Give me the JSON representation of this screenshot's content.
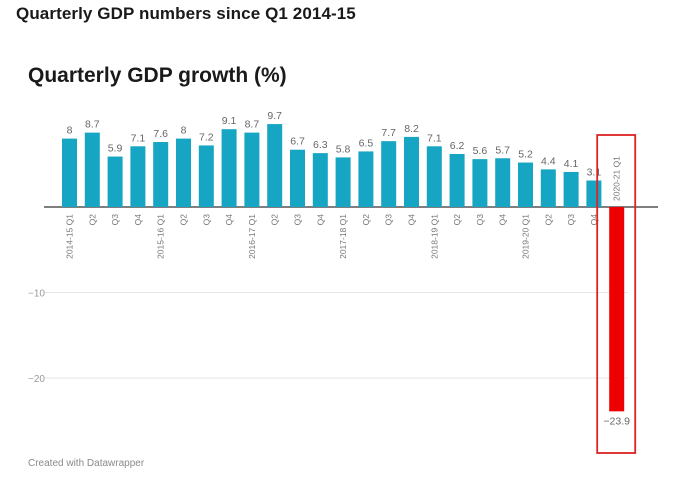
{
  "page_title": "Quarterly GDP numbers since Q1 2014-15",
  "credit": "Created with Datawrapper",
  "colors": {
    "bar": "#17a5c4",
    "highlight_bar": "#ee0000",
    "highlight_box": "#dd2222",
    "gridline": "#e6e6e6",
    "baseline": "#333333"
  },
  "chart_data": {
    "type": "bar",
    "title": "Quarterly GDP growth (%)",
    "xlabel": "",
    "ylabel": "",
    "ylim": [
      -27,
      10.5
    ],
    "yticks": [
      {
        "value": -10,
        "label": "−10"
      },
      {
        "value": -20,
        "label": "−20"
      }
    ],
    "categories": [
      "2014-15 Q1",
      "Q2",
      "Q3",
      "Q4",
      "2015-16 Q1",
      "Q2",
      "Q3",
      "Q4",
      "2016-17 Q1",
      "Q2",
      "Q3",
      "Q4",
      "2017-18 Q1",
      "Q2",
      "Q3",
      "Q4",
      "2018-19 Q1",
      "Q2",
      "Q3",
      "Q4",
      "2019-20 Q1",
      "Q2",
      "Q3",
      "Q4",
      "2020-21 Q1"
    ],
    "values": [
      8,
      8.7,
      5.9,
      7.1,
      7.6,
      8,
      7.2,
      9.1,
      8.7,
      9.7,
      6.7,
      6.3,
      5.8,
      6.5,
      7.7,
      8.2,
      7.1,
      6.2,
      5.6,
      5.7,
      5.2,
      4.4,
      4.1,
      3.1,
      -23.9
    ],
    "value_labels": [
      "8",
      "8.7",
      "5.9",
      "7.1",
      "7.6",
      "8",
      "7.2",
      "9.1",
      "8.7",
      "9.7",
      "6.7",
      "6.3",
      "5.8",
      "6.5",
      "7.7",
      "8.2",
      "7.1",
      "6.2",
      "5.6",
      "5.7",
      "5.2",
      "4.4",
      "4.1",
      "3.1",
      "−23.9"
    ],
    "highlight_index": 24,
    "grid": true
  }
}
